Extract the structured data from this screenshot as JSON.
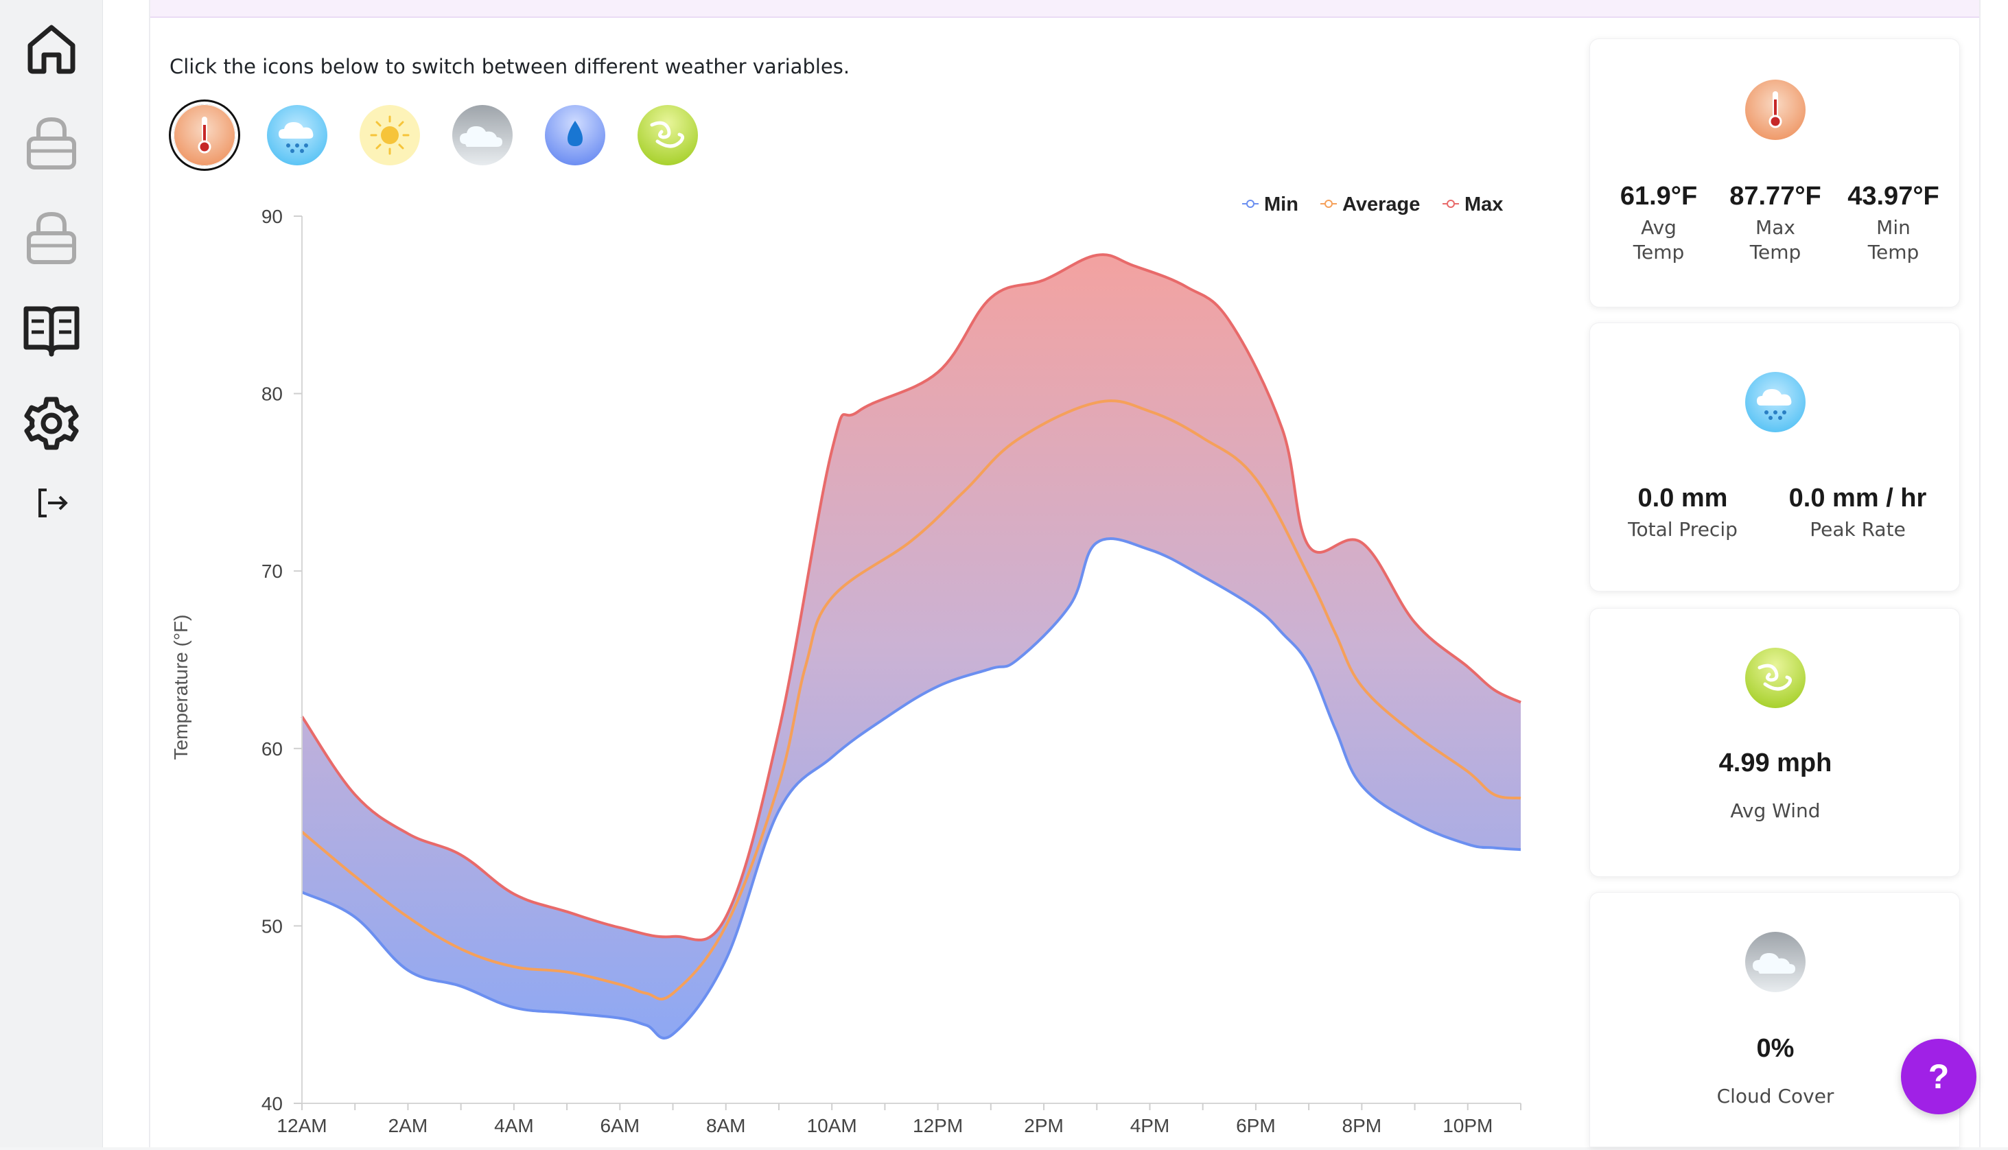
{
  "sidebar": {
    "items": [
      {
        "name": "home-icon"
      },
      {
        "name": "lock-icon"
      },
      {
        "name": "lock-icon"
      },
      {
        "name": "book-icon"
      },
      {
        "name": "gear-icon"
      },
      {
        "name": "logout-icon"
      }
    ]
  },
  "instructions": "Click the icons below to switch between different weather variables.",
  "variables": [
    {
      "name": "thermometer-icon",
      "active": true
    },
    {
      "name": "rain-cloud-icon",
      "active": false
    },
    {
      "name": "sun-icon",
      "active": false
    },
    {
      "name": "cloud-icon",
      "active": false
    },
    {
      "name": "water-drop-icon",
      "active": false
    },
    {
      "name": "wind-icon",
      "active": false
    }
  ],
  "colors": {
    "min": "#6b8ff0",
    "average": "#f5a05a",
    "max": "#e86a6a",
    "accent": "#a021e6"
  },
  "chart_data": {
    "type": "area",
    "xlabel": "",
    "ylabel": "Temperature (°F)",
    "ylim": [
      40,
      90
    ],
    "yticks": [
      40,
      50,
      60,
      70,
      80,
      90
    ],
    "x_tick_labels": [
      "12AM",
      "2AM",
      "4AM",
      "6AM",
      "8AM",
      "10AM",
      "12PM",
      "2PM",
      "4PM",
      "6PM",
      "8PM",
      "10PM"
    ],
    "x_hours": [
      0,
      0.5,
      1,
      1.5,
      2,
      2.5,
      3,
      3.5,
      4,
      4.5,
      5,
      5.5,
      6,
      6.5,
      7,
      7.5,
      8,
      8.5,
      9,
      9.5,
      10,
      10.5,
      11,
      11.5,
      12,
      12.5,
      13,
      13.5,
      14,
      14.5,
      15,
      15.5,
      16,
      16.5,
      17,
      17.5,
      18,
      18.5,
      19,
      19.5,
      20,
      20.5,
      21,
      21.5,
      22,
      22.5,
      23
    ],
    "legend": [
      "Min",
      "Average",
      "Max"
    ],
    "legend_position": "top-right",
    "series": [
      {
        "name": "Min",
        "values": [
          51.9,
          50.5,
          47.5,
          46.6,
          45.4,
          45.1,
          44.8,
          44.4,
          43.9,
          48.1,
          56.5,
          59.5,
          61.7,
          63.5,
          64.5,
          65.0,
          68.1,
          71.6,
          71.2,
          69.7,
          67.9,
          66.5,
          64.7,
          61.1,
          57.9,
          55.8,
          54.6,
          54.4,
          54.3
        ],
        "x": [
          0,
          1,
          2,
          3,
          4,
          5,
          6,
          6.5,
          7,
          8,
          9,
          10,
          11,
          12,
          13,
          13.5,
          14.5,
          15,
          16,
          17,
          18,
          18.5,
          19,
          19.5,
          20,
          21,
          22,
          22.5,
          23
        ]
      },
      {
        "name": "Average",
        "values": [
          55.3,
          52.8,
          50.5,
          48.7,
          47.7,
          47.4,
          46.7,
          46.2,
          46.2,
          50.0,
          58.0,
          64.6,
          68.5,
          71.7,
          74.5,
          77.4,
          79.5,
          79.0,
          77.5,
          75.2,
          69.7,
          66.5,
          63.5,
          60.8,
          58.7,
          57.4,
          57.2
        ],
        "x": [
          0,
          1,
          2,
          3,
          4,
          5,
          6,
          6.5,
          7,
          8,
          9,
          9.5,
          10,
          11.5,
          12.5,
          13.5,
          15,
          16,
          17,
          18,
          19,
          19.5,
          20,
          21,
          22,
          22.5,
          23
        ]
      },
      {
        "name": "Max",
        "values": [
          61.8,
          57.4,
          55.2,
          54.0,
          51.8,
          50.8,
          49.9,
          49.4,
          50.5,
          61.0,
          76.8,
          79.0,
          81.2,
          85.4,
          86.4,
          87.8,
          87.2,
          86.0,
          84.1,
          78.0,
          71.4,
          71.6,
          67.1,
          64.6,
          63.3,
          62.6
        ],
        "x": [
          0,
          1,
          2,
          3,
          4,
          5,
          6,
          7,
          8,
          9,
          10,
          10.5,
          12,
          13,
          14,
          15,
          15.7,
          16.7,
          17.5,
          18.5,
          19,
          20,
          21,
          22,
          22.5,
          23
        ]
      }
    ]
  },
  "cards": {
    "temperature": {
      "icon": "thermometer-icon",
      "stats": [
        {
          "value": "61.9°F",
          "label1": "Avg",
          "label2": "Temp"
        },
        {
          "value": "87.77°F",
          "label1": "Max",
          "label2": "Temp"
        },
        {
          "value": "43.97°F",
          "label1": "Min",
          "label2": "Temp"
        }
      ]
    },
    "precip": {
      "icon": "rain-cloud-icon",
      "stats": [
        {
          "value": "0.0 mm",
          "label": "Total Precip"
        },
        {
          "value": "0.0 mm / hr",
          "label": "Peak Rate"
        }
      ]
    },
    "wind": {
      "icon": "wind-icon",
      "value": "4.99 mph",
      "label": "Avg Wind"
    },
    "cloud": {
      "icon": "cloud-icon",
      "value": "0%",
      "label": "Cloud Cover"
    }
  },
  "help_label": "?"
}
